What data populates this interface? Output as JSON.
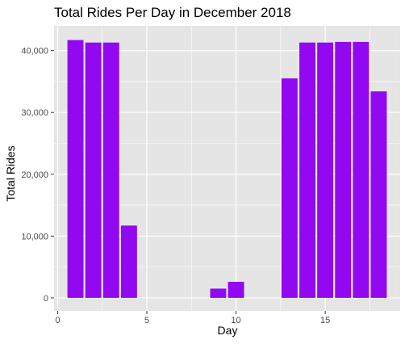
{
  "chart_data": {
    "type": "bar",
    "title": "Total Rides Per Day in December 2018",
    "xlabel": "Day",
    "ylabel": "Total Rides",
    "x": [
      1,
      2,
      3,
      4,
      9,
      10,
      13,
      14,
      15,
      16,
      17,
      18
    ],
    "values": [
      41700,
      41300,
      41300,
      11700,
      1500,
      2600,
      35500,
      41300,
      41300,
      41400,
      41400,
      33400
    ],
    "xlim": [
      -0.2,
      19.2
    ],
    "ylim": [
      -2100,
      44000
    ],
    "x_ticks": [
      0,
      5,
      10,
      15
    ],
    "x_tick_labels": [
      "0",
      "5",
      "10",
      "15"
    ],
    "y_ticks": [
      0,
      10000,
      20000,
      30000,
      40000
    ],
    "y_tick_labels": [
      "0",
      "10,000",
      "20,000",
      "30,000",
      "40,000"
    ],
    "bar_color": "#9208F0",
    "panel_color": "#E5E5E5",
    "grid": true
  }
}
